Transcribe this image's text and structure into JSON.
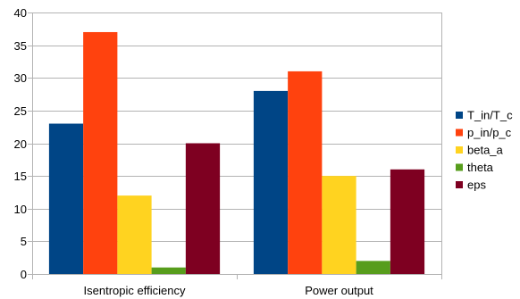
{
  "chart_data": {
    "type": "bar",
    "title": "",
    "xlabel": "",
    "ylabel": "",
    "categories": [
      "Isentropic efficiency",
      "Power output"
    ],
    "series": [
      {
        "name": "T_in/T_c",
        "values": [
          23,
          28
        ],
        "color": "#004586"
      },
      {
        "name": "p_in/p_c",
        "values": [
          37,
          31
        ],
        "color": "#ff420e"
      },
      {
        "name": "beta_a",
        "values": [
          12,
          15
        ],
        "color": "#ffd320"
      },
      {
        "name": "theta",
        "values": [
          1,
          2
        ],
        "color": "#579d1c"
      },
      {
        "name": "eps",
        "values": [
          20,
          16
        ],
        "color": "#7e0021"
      }
    ],
    "ylim": [
      0,
      40
    ],
    "yticks": [
      "0",
      "5",
      "10",
      "15",
      "20",
      "25",
      "30",
      "35",
      "40"
    ],
    "grid": true,
    "legend_position": "right",
    "grid_color": "#b3b3b3"
  }
}
